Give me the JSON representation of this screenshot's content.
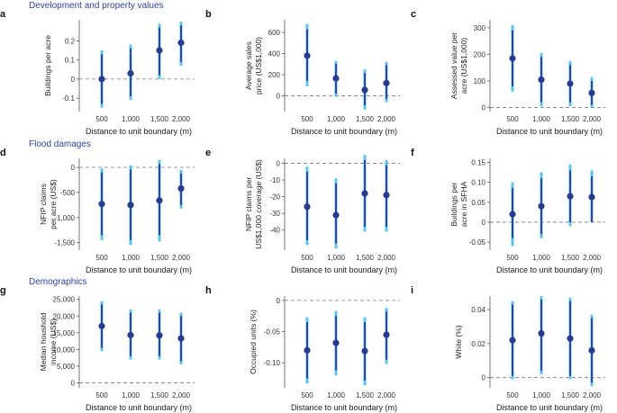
{
  "sections": [
    {
      "id": "development",
      "title": "Development and property values"
    },
    {
      "id": "flood",
      "title": "Flood damages"
    },
    {
      "id": "demographics",
      "title": "Demographics"
    }
  ],
  "colors": {
    "point": "#2b3990",
    "ci_inner": "#2b3990",
    "ci_outer": "#56c7e8",
    "zero": "#777777",
    "section_title": "#2f3f9e"
  },
  "chart_data": [
    {
      "panel": "a",
      "type": "scatter",
      "section": "development",
      "title": "",
      "ylabel": [
        "Buildings per acre"
      ],
      "xlabel": "Distance to unit boundary (m)",
      "categories": [
        "500",
        "1,000",
        "1,500",
        "2,000"
      ],
      "ylim": [
        -0.17,
        0.31
      ],
      "yticks": [
        -0.1,
        0.0,
        0.1,
        0.2
      ],
      "yticklabels": [
        "-0.1",
        "0",
        "0.1",
        "0.2"
      ],
      "zero_line": true,
      "values": [
        0.0,
        0.03,
        0.15,
        0.19
      ],
      "ci90": [
        [
          -0.13,
          0.13
        ],
        [
          -0.09,
          0.16
        ],
        [
          0.02,
          0.27
        ],
        [
          0.09,
          0.28
        ]
      ],
      "ci95": [
        [
          -0.15,
          0.15
        ],
        [
          -0.11,
          0.18
        ],
        [
          0.0,
          0.29
        ],
        [
          0.07,
          0.3
        ]
      ]
    },
    {
      "panel": "b",
      "type": "scatter",
      "section": "development",
      "title": "",
      "ylabel": [
        "Average sales",
        "price (US$1,000)"
      ],
      "xlabel": "Distance to unit boundary (m)",
      "categories": [
        "500",
        "1,000",
        "1,500",
        "2,000"
      ],
      "ylim": [
        -150,
        720
      ],
      "yticks": [
        0,
        200,
        400,
        600
      ],
      "yticklabels": [
        "0",
        "200",
        "400",
        "600"
      ],
      "zero_line": true,
      "values": [
        380,
        165,
        55,
        120
      ],
      "ci90": [
        [
          140,
          630
        ],
        [
          20,
          300
        ],
        [
          -90,
          215
        ],
        [
          -30,
          290
        ]
      ],
      "ci95": [
        [
          90,
          680
        ],
        [
          -10,
          330
        ],
        [
          -130,
          250
        ],
        [
          -60,
          320
        ]
      ]
    },
    {
      "panel": "c",
      "type": "scatter",
      "section": "development",
      "title": "",
      "ylabel": [
        "Assessed value per",
        "acre (US$1,000)"
      ],
      "xlabel": "Distance to unit boundary (m)",
      "categories": [
        "500",
        "1,000",
        "1,500",
        "2,000"
      ],
      "ylim": [
        -15,
        330
      ],
      "yticks": [
        0,
        100,
        200,
        300
      ],
      "yticklabels": [
        "0",
        "100",
        "200",
        "300"
      ],
      "zero_line": true,
      "values": [
        185,
        105,
        90,
        55
      ],
      "ci90": [
        [
          80,
          290
        ],
        [
          20,
          190
        ],
        [
          20,
          160
        ],
        [
          10,
          100
        ]
      ],
      "ci95": [
        [
          60,
          310
        ],
        [
          5,
          205
        ],
        [
          5,
          175
        ],
        [
          0,
          115
        ]
      ]
    },
    {
      "panel": "d",
      "type": "scatter",
      "section": "flood",
      "title": "",
      "ylabel": [
        "NFIP claims",
        "per acre (US$)"
      ],
      "xlabel": "Distance to unit boundary (m)",
      "categories": [
        "500",
        "1,000",
        "1,500",
        "2,000"
      ],
      "ylim": [
        -1650,
        180
      ],
      "yticks": [
        0,
        -500,
        -1000,
        -1500
      ],
      "yticklabels": [
        "0",
        "-500",
        "-1,000",
        "-1,500"
      ],
      "zero_line": true,
      "values": [
        -730,
        -750,
        -660,
        -420
      ],
      "ci90": [
        [
          -1350,
          -100
        ],
        [
          -1450,
          -40
        ],
        [
          -1350,
          70
        ],
        [
          -750,
          -120
        ]
      ],
      "ci95": [
        [
          -1450,
          -20
        ],
        [
          -1550,
          40
        ],
        [
          -1480,
          150
        ],
        [
          -820,
          -50
        ]
      ]
    },
    {
      "panel": "e",
      "type": "scatter",
      "section": "flood",
      "title": "",
      "ylabel": [
        "NFIP claims per",
        "US$1,000 coverage (US$)"
      ],
      "xlabel": "Distance to unit boundary (m)",
      "categories": [
        "500",
        "1,000",
        "1,500",
        "2,000"
      ],
      "ylim": [
        -52,
        3
      ],
      "yticks": [
        0,
        -10,
        -20,
        -30,
        -40
      ],
      "yticklabels": [
        "0",
        "-10",
        "-20",
        "-30",
        "-40"
      ],
      "zero_line": true,
      "values": [
        -26,
        -31,
        -18,
        -19
      ],
      "ci90": [
        [
          -46,
          -5
        ],
        [
          -48,
          -12
        ],
        [
          -38,
          2
        ],
        [
          -38,
          -1
        ]
      ],
      "ci95": [
        [
          -49,
          -2
        ],
        [
          -51,
          -9
        ],
        [
          -41,
          5
        ],
        [
          -41,
          2
        ]
      ]
    },
    {
      "panel": "f",
      "type": "scatter",
      "section": "flood",
      "title": "",
      "ylabel": [
        "Buildings per",
        "acre in SFHA"
      ],
      "xlabel": "Distance to unit boundary (m)",
      "categories": [
        "500",
        "1,000",
        "1,500",
        "2,000"
      ],
      "ylim": [
        -0.07,
        0.16
      ],
      "yticks": [
        -0.05,
        0.0,
        0.05,
        0.1,
        0.15
      ],
      "yticklabels": [
        "-0.05",
        "0",
        "0.05",
        "0.10",
        "0.15"
      ],
      "zero_line": true,
      "values": [
        0.02,
        0.04,
        0.065,
        0.063
      ],
      "ci90": [
        [
          -0.04,
          0.085
        ],
        [
          -0.03,
          0.11
        ],
        [
          0.0,
          0.13
        ],
        [
          0.0,
          0.115
        ]
      ],
      "ci95": [
        [
          -0.06,
          0.1
        ],
        [
          -0.04,
          0.125
        ],
        [
          -0.01,
          0.145
        ],
        [
          0.0,
          0.13
        ]
      ]
    },
    {
      "panel": "g",
      "type": "scatter",
      "section": "demographics",
      "title": "",
      "ylabel": [
        "Median houshold",
        "income (US$)"
      ],
      "xlabel": "Distance to unit boundary (m)",
      "categories": [
        "500",
        "1,000",
        "1,500",
        "2,000"
      ],
      "ylim": [
        -1500,
        26000
      ],
      "yticks": [
        0,
        5000,
        10000,
        15000,
        20000,
        25000
      ],
      "yticklabels": [
        "0",
        "5,000",
        "10,000",
        "15,000",
        "20,000",
        "25,000"
      ],
      "zero_line": true,
      "values": [
        17000,
        14300,
        14200,
        13300
      ],
      "ci90": [
        [
          10500,
          23500
        ],
        [
          8000,
          21000
        ],
        [
          8000,
          21000
        ],
        [
          6500,
          20000
        ]
      ],
      "ci95": [
        [
          9500,
          24500
        ],
        [
          7000,
          22000
        ],
        [
          7000,
          22000
        ],
        [
          5500,
          21000
        ]
      ]
    },
    {
      "panel": "h",
      "type": "scatter",
      "section": "demographics",
      "title": "",
      "ylabel": [
        "Occupied units (%)"
      ],
      "xlabel": "Distance to unit boundary (m)",
      "categories": [
        "500",
        "1,000",
        "1,500",
        "2,000"
      ],
      "ylim": [
        -0.14,
        0.007
      ],
      "yticks": [
        0.0,
        -0.05,
        -0.1
      ],
      "yticklabels": [
        "0",
        "-0.05",
        "-0.10"
      ],
      "zero_line": true,
      "values": [
        -0.08,
        -0.068,
        -0.081,
        -0.055
      ],
      "ci90": [
        [
          -0.125,
          -0.035
        ],
        [
          -0.112,
          -0.025
        ],
        [
          -0.128,
          -0.035
        ],
        [
          -0.095,
          -0.018
        ]
      ],
      "ci95": [
        [
          -0.133,
          -0.027
        ],
        [
          -0.12,
          -0.017
        ],
        [
          -0.136,
          -0.027
        ],
        [
          -0.102,
          -0.012
        ]
      ]
    },
    {
      "panel": "i",
      "type": "scatter",
      "section": "demographics",
      "title": "",
      "ylabel": [
        "White (%)"
      ],
      "xlabel": "Distance to unit boundary (m)",
      "categories": [
        "500",
        "1,000",
        "1,500",
        "2,000"
      ],
      "ylim": [
        -0.006,
        0.048
      ],
      "yticks": [
        0.0,
        0.02,
        0.04
      ],
      "yticklabels": [
        "0",
        "0.02",
        "0.04"
      ],
      "zero_line": true,
      "values": [
        0.022,
        0.026,
        0.023,
        0.016
      ],
      "ci90": [
        [
          0.001,
          0.043
        ],
        [
          0.004,
          0.046
        ],
        [
          0.001,
          0.045
        ],
        [
          -0.003,
          0.035
        ]
      ],
      "ci95": [
        [
          -0.001,
          0.045
        ],
        [
          0.002,
          0.048
        ],
        [
          -0.001,
          0.047
        ],
        [
          -0.005,
          0.037
        ]
      ]
    }
  ]
}
